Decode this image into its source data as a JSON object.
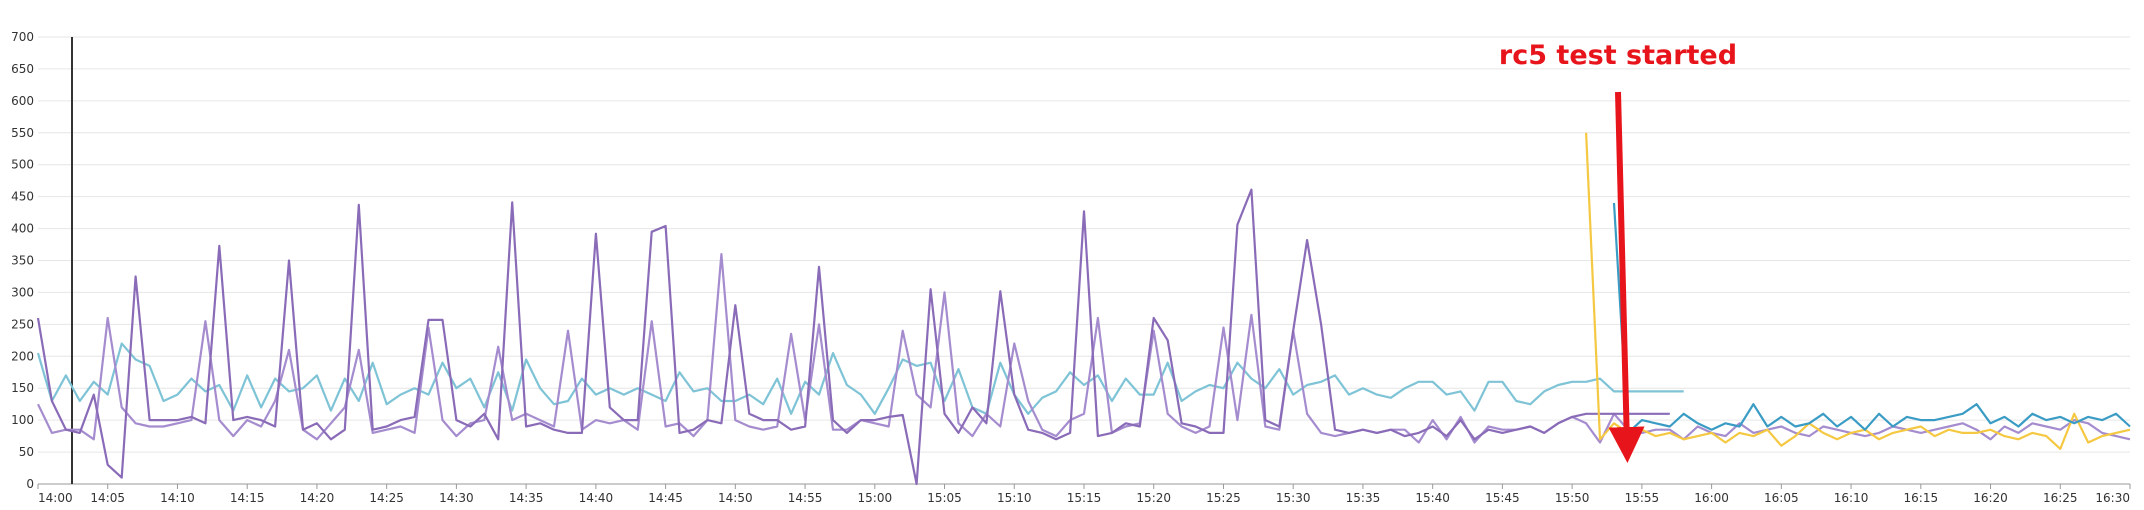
{
  "chart_data": {
    "type": "line",
    "annotation": "rc5 test started",
    "x": [
      "14:00",
      "14:01",
      "14:02",
      "14:03",
      "14:04",
      "14:05",
      "14:06",
      "14:07",
      "14:08",
      "14:09",
      "14:10",
      "14:11",
      "14:12",
      "14:13",
      "14:14",
      "14:15",
      "14:16",
      "14:17",
      "14:18",
      "14:19",
      "14:20",
      "14:21",
      "14:22",
      "14:23",
      "14:24",
      "14:25",
      "14:26",
      "14:27",
      "14:28",
      "14:29",
      "14:30",
      "14:31",
      "14:32",
      "14:33",
      "14:34",
      "14:35",
      "14:36",
      "14:37",
      "14:38",
      "14:39",
      "14:40",
      "14:41",
      "14:42",
      "14:43",
      "14:44",
      "14:45",
      "14:46",
      "14:47",
      "14:48",
      "14:49",
      "14:50",
      "14:51",
      "14:52",
      "14:53",
      "14:54",
      "14:55",
      "14:56",
      "14:57",
      "14:58",
      "14:59",
      "15:00",
      "15:01",
      "15:02",
      "15:03",
      "15:04",
      "15:05",
      "15:06",
      "15:07",
      "15:08",
      "15:09",
      "15:10",
      "15:11",
      "15:12",
      "15:13",
      "15:14",
      "15:15",
      "15:16",
      "15:17",
      "15:18",
      "15:19",
      "15:20",
      "15:21",
      "15:22",
      "15:23",
      "15:24",
      "15:25",
      "15:26",
      "15:27",
      "15:28",
      "15:29",
      "15:30",
      "15:31",
      "15:32",
      "15:33",
      "15:34",
      "15:35",
      "15:36",
      "15:37",
      "15:38",
      "15:39",
      "15:40",
      "15:41",
      "15:42",
      "15:43",
      "15:44",
      "15:45",
      "15:46",
      "15:47",
      "15:48",
      "15:49",
      "15:50",
      "15:51",
      "15:52",
      "15:53",
      "15:54",
      "15:55",
      "15:56",
      "15:57",
      "15:58",
      "15:59",
      "16:00",
      "16:01",
      "16:02",
      "16:03",
      "16:04",
      "16:05",
      "16:06",
      "16:07",
      "16:08",
      "16:09",
      "16:10",
      "16:11",
      "16:12",
      "16:13",
      "16:14",
      "16:15",
      "16:16",
      "16:17",
      "16:18",
      "16:19",
      "16:20",
      "16:21",
      "16:22",
      "16:23",
      "16:24",
      "16:25",
      "16:26",
      "16:27",
      "16:28",
      "16:29",
      "16:30"
    ],
    "xlim": [
      "14:00",
      "16:30"
    ],
    "xticks": [
      "14:00",
      "14:05",
      "14:10",
      "14:15",
      "14:20",
      "14:25",
      "14:30",
      "14:35",
      "14:40",
      "14:45",
      "14:50",
      "14:55",
      "15:00",
      "15:05",
      "15:10",
      "15:15",
      "15:20",
      "15:25",
      "15:30",
      "15:35",
      "15:40",
      "15:45",
      "15:50",
      "15:55",
      "16:00",
      "16:05",
      "16:10",
      "16:15",
      "16:20",
      "16:25",
      "16:30"
    ],
    "ylim": [
      0,
      700
    ],
    "yticks": [
      0,
      50,
      100,
      150,
      200,
      250,
      300,
      350,
      400,
      450,
      500,
      550,
      600,
      650,
      700
    ],
    "grid": true,
    "series": [
      {
        "color": "#7ec3d6",
        "values": [
          205,
          130,
          170,
          130,
          160,
          140,
          220,
          195,
          185,
          130,
          140,
          165,
          145,
          155,
          115,
          170,
          120,
          165,
          145,
          150,
          170,
          115,
          165,
          130,
          190,
          125,
          140,
          150,
          140,
          190,
          150,
          165,
          120,
          175,
          115,
          195,
          150,
          125,
          130,
          165,
          140,
          150,
          140,
          150,
          140,
          130,
          175,
          145,
          150,
          130,
          130,
          140,
          125,
          165,
          110,
          160,
          140,
          205,
          155,
          140,
          110,
          150,
          195,
          185,
          190,
          130,
          180,
          120,
          110,
          190,
          140,
          110,
          135,
          145,
          175,
          155,
          170,
          130,
          165,
          140,
          140,
          190,
          130,
          145,
          155,
          150,
          190,
          165,
          150,
          180,
          140,
          155,
          160,
          170,
          140,
          150,
          140,
          135,
          150,
          160,
          160,
          140,
          145,
          115,
          160,
          160,
          130,
          125,
          145,
          155,
          160,
          160,
          165,
          145,
          145,
          145,
          145,
          145,
          145,
          null,
          null,
          null,
          null,
          null,
          null,
          null,
          null,
          null,
          null,
          null,
          null,
          null,
          null,
          null,
          null,
          null,
          null,
          null,
          null,
          null,
          null,
          null,
          null,
          null,
          null,
          null,
          null,
          null,
          null,
          null,
          null
        ]
      },
      {
        "color": "#a58ccf",
        "values": [
          125,
          80,
          85,
          85,
          70,
          260,
          120,
          95,
          90,
          90,
          95,
          100,
          255,
          100,
          75,
          100,
          90,
          130,
          210,
          85,
          70,
          95,
          120,
          210,
          80,
          85,
          90,
          80,
          245,
          100,
          75,
          95,
          100,
          215,
          100,
          110,
          100,
          90,
          240,
          85,
          100,
          95,
          100,
          85,
          255,
          90,
          95,
          75,
          100,
          360,
          100,
          90,
          85,
          90,
          235,
          100,
          250,
          85,
          85,
          100,
          95,
          90,
          240,
          140,
          120,
          300,
          95,
          75,
          110,
          90,
          220,
          130,
          85,
          75,
          100,
          110,
          260,
          80,
          90,
          95,
          240,
          110,
          90,
          80,
          90,
          245,
          100,
          265,
          90,
          85,
          240,
          110,
          80,
          75,
          80,
          85,
          80,
          85,
          85,
          65,
          100,
          70,
          105,
          65,
          90,
          85,
          85,
          90,
          80,
          95,
          105,
          95,
          65,
          110,
          85,
          80,
          85,
          85,
          70,
          90,
          80,
          75,
          95,
          80,
          85,
          90,
          80,
          75,
          90,
          85,
          80,
          75,
          80,
          90,
          85,
          80,
          85,
          90,
          95,
          85,
          70,
          90,
          80,
          95,
          90,
          85,
          100,
          95,
          80,
          75,
          70
        ]
      },
      {
        "color": "#8a6bb8",
        "values": [
          260,
          130,
          85,
          80,
          140,
          30,
          10,
          325,
          100,
          100,
          100,
          105,
          95,
          373,
          100,
          105,
          100,
          90,
          350,
          85,
          95,
          70,
          85,
          437,
          85,
          90,
          100,
          105,
          257,
          257,
          100,
          90,
          110,
          70,
          441,
          90,
          95,
          85,
          80,
          80,
          392,
          120,
          100,
          100,
          395,
          404,
          80,
          85,
          100,
          95,
          280,
          110,
          100,
          100,
          85,
          90,
          340,
          100,
          80,
          100,
          100,
          105,
          108,
          0,
          305,
          110,
          80,
          120,
          95,
          302,
          140,
          85,
          80,
          70,
          80,
          427,
          75,
          80,
          95,
          90,
          260,
          225,
          95,
          90,
          80,
          80,
          406,
          461,
          100,
          90,
          240,
          382,
          250,
          85,
          80,
          85,
          80,
          85,
          75,
          80,
          90,
          75,
          100,
          70,
          85,
          80,
          85,
          90,
          80,
          95,
          105,
          110,
          110,
          110,
          110,
          110,
          110,
          110,
          null,
          null,
          null,
          null,
          null,
          null,
          null,
          null,
          null,
          null,
          null,
          null,
          null,
          null,
          null,
          null,
          null,
          null,
          null,
          null,
          null,
          null,
          null,
          null,
          null,
          null,
          null,
          null,
          null,
          null,
          null,
          null,
          null
        ]
      },
      {
        "color": "#f5c842",
        "values": [
          null,
          null,
          null,
          null,
          null,
          null,
          null,
          null,
          null,
          null,
          null,
          null,
          null,
          null,
          null,
          null,
          null,
          null,
          null,
          null,
          null,
          null,
          null,
          null,
          null,
          null,
          null,
          null,
          null,
          null,
          null,
          null,
          null,
          null,
          null,
          null,
          null,
          null,
          null,
          null,
          null,
          null,
          null,
          null,
          null,
          null,
          null,
          null,
          null,
          null,
          null,
          null,
          null,
          null,
          null,
          null,
          null,
          null,
          null,
          null,
          null,
          null,
          null,
          null,
          null,
          null,
          null,
          null,
          null,
          null,
          null,
          null,
          null,
          null,
          null,
          null,
          null,
          null,
          null,
          null,
          null,
          null,
          null,
          null,
          null,
          null,
          null,
          null,
          null,
          null,
          null,
          null,
          null,
          null,
          null,
          null,
          null,
          null,
          null,
          null,
          null,
          null,
          null,
          null,
          null,
          null,
          null,
          null,
          null,
          null,
          null,
          550,
          70,
          95,
          80,
          85,
          75,
          80,
          70,
          75,
          80,
          65,
          80,
          75,
          85,
          60,
          75,
          95,
          80,
          70,
          80,
          85,
          70,
          80,
          85,
          90,
          75,
          85,
          80,
          80,
          85,
          75,
          70,
          80,
          75,
          55,
          110,
          65,
          75,
          80,
          85
        ]
      },
      {
        "color": "#3a9cc4",
        "values": [
          null,
          null,
          null,
          null,
          null,
          null,
          null,
          null,
          null,
          null,
          null,
          null,
          null,
          null,
          null,
          null,
          null,
          null,
          null,
          null,
          null,
          null,
          null,
          null,
          null,
          null,
          null,
          null,
          null,
          null,
          null,
          null,
          null,
          null,
          null,
          null,
          null,
          null,
          null,
          null,
          null,
          null,
          null,
          null,
          null,
          null,
          null,
          null,
          null,
          null,
          null,
          null,
          null,
          null,
          null,
          null,
          null,
          null,
          null,
          null,
          null,
          null,
          null,
          null,
          null,
          null,
          null,
          null,
          null,
          null,
          null,
          null,
          null,
          null,
          null,
          null,
          null,
          null,
          null,
          null,
          null,
          null,
          null,
          null,
          null,
          null,
          null,
          null,
          null,
          null,
          null,
          null,
          null,
          null,
          null,
          null,
          null,
          null,
          null,
          null,
          null,
          null,
          null,
          null,
          null,
          null,
          null,
          null,
          null,
          null,
          null,
          null,
          null,
          440,
          80,
          100,
          95,
          90,
          110,
          95,
          85,
          95,
          90,
          125,
          90,
          105,
          90,
          95,
          110,
          90,
          105,
          85,
          110,
          90,
          105,
          100,
          100,
          105,
          110,
          125,
          95,
          105,
          90,
          110,
          100,
          105,
          95,
          105,
          100,
          110,
          90
        ]
      }
    ]
  }
}
